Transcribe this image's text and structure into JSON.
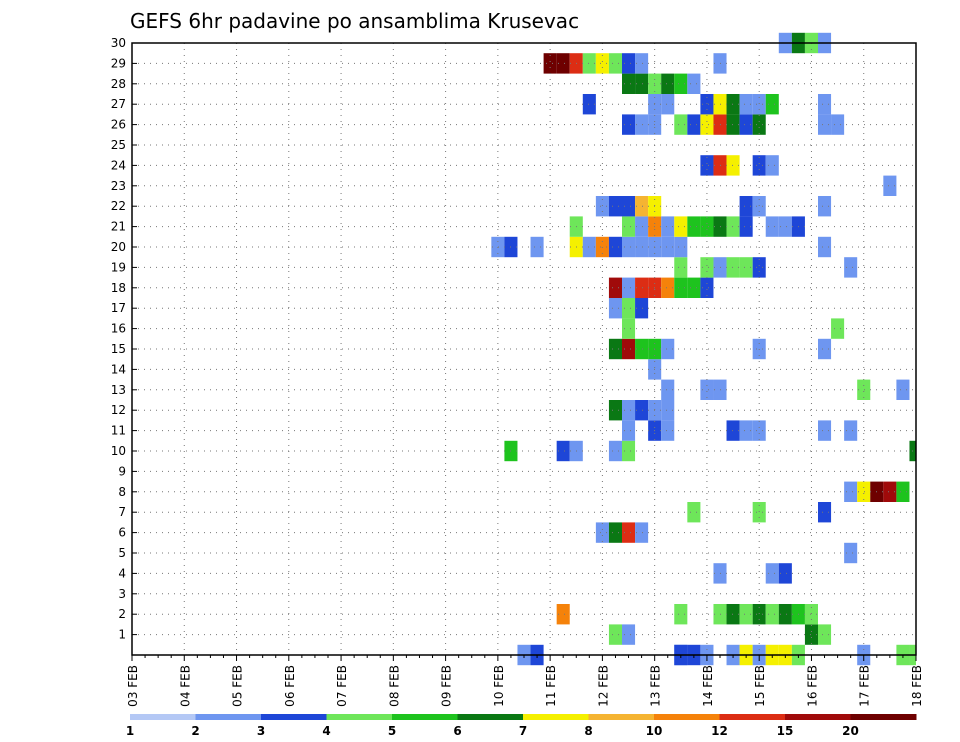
{
  "chart_data": {
    "type": "heatmap",
    "title": "GEFS 6hr padavine po ansamblima Krusevac",
    "xlabel": "",
    "ylabel": "",
    "x_tick_labels": [
      "03 FEB",
      "04 FEB",
      "05 FEB",
      "06 FEB",
      "07 FEB",
      "08 FEB",
      "09 FEB",
      "10 FEB",
      "11 FEB",
      "12 FEB",
      "13 FEB",
      "14 FEB",
      "15 FEB",
      "16 FEB",
      "17 FEB",
      "18 FEB"
    ],
    "y_tick_labels": [
      "1",
      "2",
      "3",
      "4",
      "5",
      "6",
      "7",
      "8",
      "9",
      "10",
      "11",
      "12",
      "13",
      "14",
      "15",
      "16",
      "17",
      "18",
      "19",
      "20",
      "21",
      "22",
      "23",
      "24",
      "25",
      "26",
      "27",
      "28",
      "29",
      "30"
    ],
    "x_range_steps": [
      0,
      60
    ],
    "y_range": [
      0,
      30
    ],
    "grid": true,
    "colorbar": {
      "labels": [
        "1",
        "2",
        "3",
        "4",
        "5",
        "6",
        "7",
        "8",
        "10",
        "12",
        "15",
        "20"
      ],
      "colors": [
        "#b4c8f5",
        "#6e96f0",
        "#1e46d7",
        "#6ee65a",
        "#1ec31e",
        "#0a7814",
        "#f5f000",
        "#f5b432",
        "#f5820a",
        "#dc2d14",
        "#a00a0a",
        "#6e0000"
      ]
    },
    "cells": [
      [
        31,
        0,
        2
      ],
      [
        30,
        0,
        1
      ],
      [
        42,
        0,
        1
      ],
      [
        42,
        0,
        2
      ],
      [
        43,
        0,
        2
      ],
      [
        44,
        0,
        1
      ],
      [
        46,
        0,
        1
      ],
      [
        47,
        0,
        6
      ],
      [
        48,
        0,
        1
      ],
      [
        49,
        0,
        6
      ],
      [
        50,
        0,
        6
      ],
      [
        51,
        0,
        3
      ],
      [
        56,
        0,
        1
      ],
      [
        59,
        0,
        3
      ],
      [
        60,
        0,
        3
      ],
      [
        37,
        1,
        3
      ],
      [
        38,
        1,
        1
      ],
      [
        52,
        1,
        5
      ],
      [
        53,
        1,
        3
      ],
      [
        33,
        2,
        8
      ],
      [
        42,
        2,
        3
      ],
      [
        45,
        2,
        3
      ],
      [
        46,
        2,
        5
      ],
      [
        47,
        2,
        3
      ],
      [
        48,
        2,
        5
      ],
      [
        49,
        2,
        3
      ],
      [
        50,
        2,
        5
      ],
      [
        51,
        2,
        4
      ],
      [
        52,
        2,
        3
      ],
      [
        45,
        4,
        1
      ],
      [
        49,
        4,
        1
      ],
      [
        50,
        4,
        2
      ],
      [
        55,
        5,
        1
      ],
      [
        36,
        6,
        1
      ],
      [
        37,
        6,
        5
      ],
      [
        38,
        6,
        9
      ],
      [
        39,
        6,
        1
      ],
      [
        43,
        7,
        3
      ],
      [
        48,
        7,
        3
      ],
      [
        53,
        7,
        2
      ],
      [
        55,
        8,
        1
      ],
      [
        56,
        8,
        6
      ],
      [
        57,
        8,
        11
      ],
      [
        58,
        8,
        10
      ],
      [
        59,
        8,
        4
      ],
      [
        29,
        10,
        4
      ],
      [
        33,
        10,
        2
      ],
      [
        34,
        10,
        1
      ],
      [
        37,
        10,
        1
      ],
      [
        38,
        10,
        3
      ],
      [
        60,
        10,
        5
      ],
      [
        38,
        11,
        1
      ],
      [
        40,
        11,
        2
      ],
      [
        41,
        11,
        1
      ],
      [
        46,
        11,
        2
      ],
      [
        47,
        11,
        1
      ],
      [
        48,
        11,
        1
      ],
      [
        53,
        11,
        1
      ],
      [
        55,
        11,
        1
      ],
      [
        37,
        12,
        5
      ],
      [
        38,
        12,
        1
      ],
      [
        39,
        12,
        2
      ],
      [
        40,
        12,
        1
      ],
      [
        41,
        12,
        1
      ],
      [
        41,
        13,
        1
      ],
      [
        44,
        13,
        1
      ],
      [
        45,
        13,
        1
      ],
      [
        56,
        13,
        3
      ],
      [
        59,
        13,
        1
      ],
      [
        40,
        14,
        1
      ],
      [
        37,
        15,
        5
      ],
      [
        38,
        15,
        10
      ],
      [
        39,
        15,
        4
      ],
      [
        40,
        15,
        4
      ],
      [
        41,
        15,
        1
      ],
      [
        48,
        15,
        1
      ],
      [
        53,
        15,
        1
      ],
      [
        38,
        16,
        3
      ],
      [
        54,
        16,
        3
      ],
      [
        37,
        17,
        1
      ],
      [
        38,
        17,
        3
      ],
      [
        39,
        17,
        2
      ],
      [
        37,
        18,
        10
      ],
      [
        38,
        18,
        1
      ],
      [
        39,
        18,
        9
      ],
      [
        40,
        18,
        9
      ],
      [
        41,
        18,
        8
      ],
      [
        42,
        18,
        4
      ],
      [
        43,
        18,
        4
      ],
      [
        44,
        18,
        2
      ],
      [
        42,
        19,
        3
      ],
      [
        44,
        19,
        3
      ],
      [
        45,
        19,
        1
      ],
      [
        46,
        19,
        3
      ],
      [
        47,
        19,
        3
      ],
      [
        48,
        19,
        2
      ],
      [
        55,
        19,
        1
      ],
      [
        28,
        20,
        1
      ],
      [
        29,
        20,
        2
      ],
      [
        31,
        20,
        1
      ],
      [
        34,
        20,
        6
      ],
      [
        35,
        20,
        1
      ],
      [
        36,
        20,
        8
      ],
      [
        37,
        20,
        2
      ],
      [
        38,
        20,
        1
      ],
      [
        39,
        20,
        1
      ],
      [
        40,
        20,
        1
      ],
      [
        41,
        20,
        1
      ],
      [
        42,
        20,
        1
      ],
      [
        53,
        20,
        1
      ],
      [
        34,
        21,
        3
      ],
      [
        38,
        21,
        3
      ],
      [
        39,
        21,
        1
      ],
      [
        40,
        21,
        8
      ],
      [
        41,
        21,
        1
      ],
      [
        42,
        21,
        6
      ],
      [
        43,
        21,
        4
      ],
      [
        44,
        21,
        4
      ],
      [
        45,
        21,
        5
      ],
      [
        46,
        21,
        3
      ],
      [
        47,
        21,
        2
      ],
      [
        49,
        21,
        1
      ],
      [
        50,
        21,
        1
      ],
      [
        51,
        21,
        2
      ],
      [
        36,
        22,
        1
      ],
      [
        37,
        22,
        2
      ],
      [
        38,
        22,
        2
      ],
      [
        39,
        22,
        7
      ],
      [
        40,
        22,
        6
      ],
      [
        47,
        22,
        2
      ],
      [
        48,
        22,
        1
      ],
      [
        53,
        22,
        1
      ],
      [
        58,
        23,
        1
      ],
      [
        44,
        24,
        2
      ],
      [
        45,
        24,
        9
      ],
      [
        46,
        24,
        6
      ],
      [
        48,
        24,
        2
      ],
      [
        49,
        24,
        1
      ],
      [
        38,
        26,
        2
      ],
      [
        39,
        26,
        1
      ],
      [
        40,
        26,
        1
      ],
      [
        42,
        26,
        3
      ],
      [
        43,
        26,
        2
      ],
      [
        44,
        26,
        6
      ],
      [
        45,
        26,
        9
      ],
      [
        46,
        26,
        5
      ],
      [
        47,
        26,
        2
      ],
      [
        48,
        26,
        5
      ],
      [
        53,
        26,
        1
      ],
      [
        54,
        26,
        1
      ],
      [
        35,
        27,
        2
      ],
      [
        40,
        27,
        1
      ],
      [
        41,
        27,
        1
      ],
      [
        44,
        27,
        2
      ],
      [
        45,
        27,
        6
      ],
      [
        46,
        27,
        5
      ],
      [
        47,
        27,
        1
      ],
      [
        48,
        27,
        1
      ],
      [
        49,
        27,
        4
      ],
      [
        53,
        27,
        1
      ],
      [
        38,
        28,
        5
      ],
      [
        39,
        28,
        5
      ],
      [
        40,
        28,
        3
      ],
      [
        41,
        28,
        5
      ],
      [
        42,
        28,
        4
      ],
      [
        43,
        28,
        1
      ],
      [
        32,
        29,
        11
      ],
      [
        33,
        29,
        11
      ],
      [
        34,
        29,
        9
      ],
      [
        35,
        29,
        3
      ],
      [
        36,
        29,
        6
      ],
      [
        37,
        29,
        3
      ],
      [
        38,
        29,
        2
      ],
      [
        39,
        29,
        1
      ],
      [
        45,
        29,
        1
      ],
      [
        50,
        30,
        1
      ],
      [
        51,
        30,
        5
      ],
      [
        52,
        30,
        3
      ],
      [
        53,
        30,
        1
      ]
    ]
  }
}
